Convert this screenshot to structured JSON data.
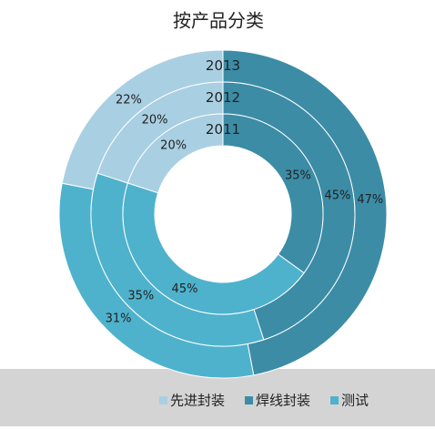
{
  "chart_data": {
    "type": "donut",
    "title": "按产品分类",
    "categories": [
      "先进封装",
      "焊线封装",
      "测试"
    ],
    "colors": [
      "#a9cfe2",
      "#3c8ca6",
      "#4fb2cc"
    ],
    "series": [
      {
        "name": "2013",
        "values": [
          22,
          47,
          31
        ],
        "value_labels": [
          "22%",
          "47%",
          "31%"
        ]
      },
      {
        "name": "2012",
        "values": [
          20,
          45,
          35
        ],
        "value_labels": [
          "20%",
          "45%",
          "35%"
        ]
      },
      {
        "name": "2011",
        "values": [
          20,
          35,
          45
        ],
        "value_labels": [
          "20%",
          "35%",
          "45%"
        ]
      }
    ],
    "legend": "bottom"
  }
}
